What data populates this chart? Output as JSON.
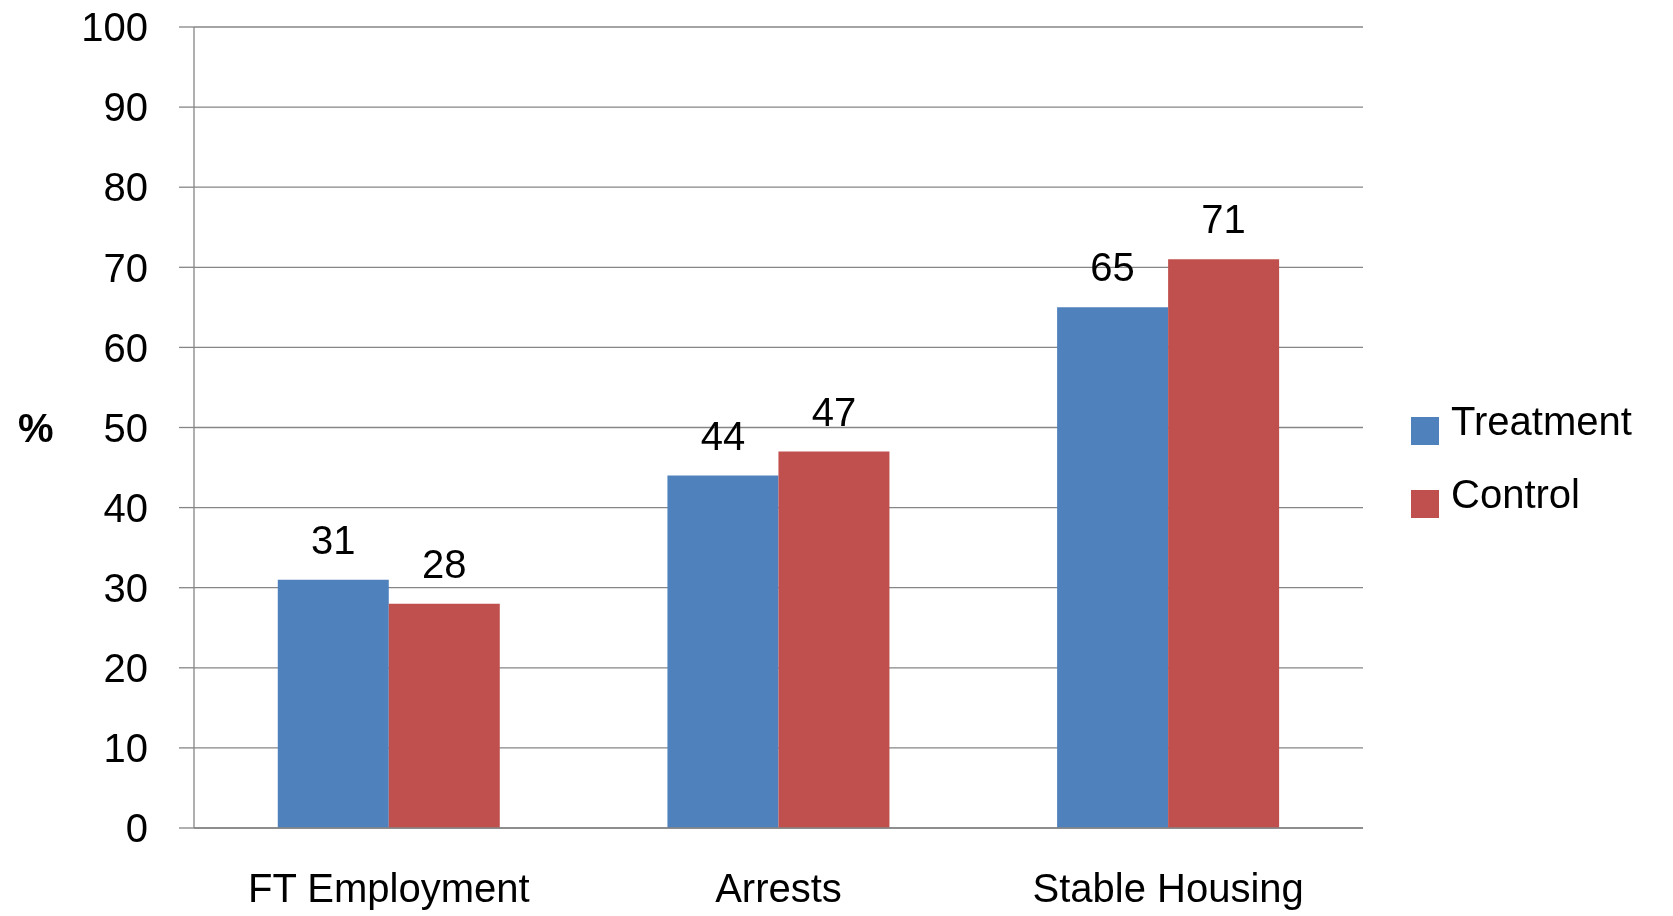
{
  "chart_data": {
    "type": "bar",
    "ylabel": "%",
    "categories": [
      "FT Employment",
      "Arrests",
      "Stable Housing"
    ],
    "series": [
      {
        "name": "Treatment",
        "color": "#4f81bd",
        "values": [
          31,
          44,
          65
        ]
      },
      {
        "name": "Control",
        "color": "#c0504d",
        "values": [
          28,
          47,
          71
        ]
      }
    ],
    "ylim": [
      0,
      100
    ],
    "yticks": [
      0,
      10,
      20,
      30,
      40,
      50,
      60,
      70,
      80,
      90,
      100
    ],
    "grid": "y",
    "legend": "right",
    "data_labels": true
  }
}
